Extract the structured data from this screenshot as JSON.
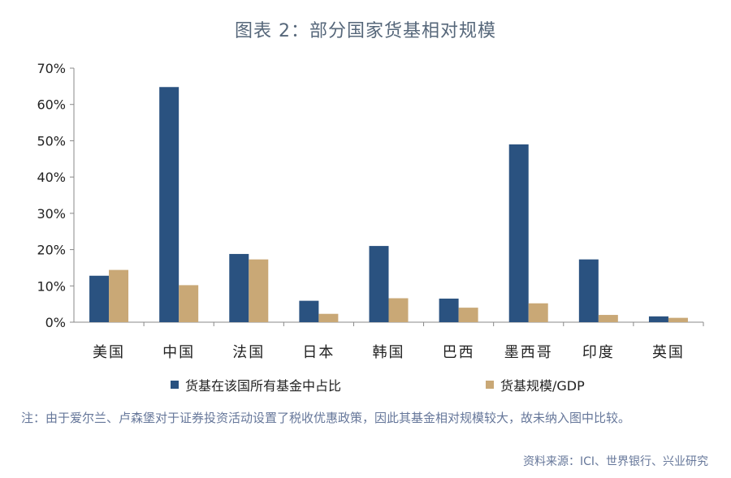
{
  "title": "图表 2：部分国家货基相对规模",
  "note": "注：由于爱尔兰、卢森堡对于证券投资活动设置了税收优惠政策，因此其基金相对规模较大，故未纳入图中比较。",
  "source": "资料来源：ICI、世界银行、兴业研究",
  "colors": {
    "series1": "#2a5280",
    "series2": "#c9a876",
    "axis": "#888888"
  },
  "chart_data": {
    "type": "bar",
    "title": "图表 2：部分国家货基相对规模",
    "categories": [
      "美国",
      "中国",
      "法国",
      "日本",
      "韩国",
      "巴西",
      "墨西哥",
      "印度",
      "英国"
    ],
    "series": [
      {
        "name": "货基在该国所有基金中占比",
        "values": [
          12.8,
          64.8,
          18.8,
          5.9,
          21.0,
          6.5,
          49.0,
          17.3,
          1.6
        ]
      },
      {
        "name": "货基规模/GDP",
        "values": [
          14.4,
          10.2,
          17.3,
          2.3,
          6.6,
          4.0,
          5.2,
          2.0,
          1.2
        ]
      }
    ],
    "y_ticks": [
      "0%",
      "10%",
      "20%",
      "30%",
      "40%",
      "50%",
      "60%",
      "70%"
    ],
    "ylim": [
      0,
      70
    ],
    "legend": "bottom",
    "grid": false
  }
}
